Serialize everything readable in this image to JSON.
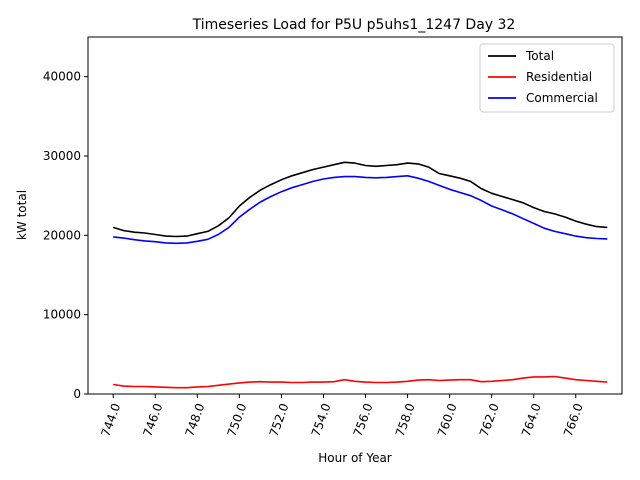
{
  "chart_data": {
    "type": "line",
    "title": "Timeseries Load for P5U p5uhs1_1247  Day 32",
    "xlabel": "Hour of Year",
    "ylabel": "kW total",
    "xlim": [
      742.8,
      768.2
    ],
    "ylim": [
      0,
      45000
    ],
    "xticks": [
      744,
      746,
      748,
      750,
      752,
      754,
      756,
      758,
      760,
      762,
      764,
      766
    ],
    "xtick_labels": [
      "744.0",
      "746.0",
      "748.0",
      "750.0",
      "752.0",
      "754.0",
      "756.0",
      "758.0",
      "760.0",
      "762.0",
      "764.0",
      "766.0"
    ],
    "yticks": [
      0,
      10000,
      20000,
      30000,
      40000
    ],
    "ytick_labels": [
      "0",
      "10000",
      "20000",
      "30000",
      "40000"
    ],
    "legend_position": "upper-right",
    "x": [
      744,
      744.5,
      745,
      745.5,
      746,
      746.5,
      747,
      747.5,
      748,
      748.5,
      749,
      749.5,
      750,
      750.5,
      751,
      751.5,
      752,
      752.5,
      753,
      753.5,
      754,
      754.5,
      755,
      755.5,
      756,
      756.5,
      757,
      757.5,
      758,
      758.5,
      759,
      759.5,
      760,
      760.5,
      761,
      761.5,
      762,
      762.5,
      763,
      763.5,
      764,
      764.5,
      765,
      765.5,
      766,
      766.5,
      767,
      767.5
    ],
    "series": [
      {
        "name": "Total",
        "color": "#000000",
        "values": [
          21000,
          20600,
          20400,
          20300,
          20100,
          19900,
          19850,
          19900,
          20200,
          20500,
          21200,
          22200,
          23700,
          24800,
          25700,
          26400,
          27000,
          27500,
          27900,
          28300,
          28600,
          28900,
          29200,
          29100,
          28800,
          28700,
          28800,
          28900,
          29100,
          29000,
          28600,
          27800,
          27500,
          27200,
          26800,
          25900,
          25300,
          24900,
          24500,
          24100,
          23500,
          23000,
          22700,
          22300,
          21800,
          21400,
          21100,
          21000
        ]
      },
      {
        "name": "Residential",
        "color": "#ff0000",
        "values": [
          1200,
          1000,
          950,
          950,
          900,
          850,
          800,
          800,
          900,
          950,
          1100,
          1250,
          1400,
          1500,
          1550,
          1500,
          1500,
          1450,
          1450,
          1500,
          1500,
          1550,
          1800,
          1600,
          1500,
          1450,
          1450,
          1500,
          1600,
          1750,
          1800,
          1700,
          1750,
          1800,
          1800,
          1550,
          1600,
          1700,
          1800,
          2000,
          2150,
          2150,
          2200,
          2000,
          1800,
          1700,
          1600,
          1500
        ]
      },
      {
        "name": "Commercial",
        "color": "#0000ff",
        "values": [
          19800,
          19650,
          19450,
          19300,
          19200,
          19050,
          19000,
          19050,
          19250,
          19500,
          20100,
          21000,
          22300,
          23300,
          24200,
          24900,
          25500,
          26000,
          26400,
          26800,
          27100,
          27300,
          27400,
          27400,
          27300,
          27250,
          27300,
          27400,
          27500,
          27200,
          26800,
          26300,
          25800,
          25400,
          25000,
          24400,
          23700,
          23200,
          22700,
          22100,
          21500,
          20900,
          20500,
          20200,
          19900,
          19700,
          19600,
          19550
        ]
      }
    ]
  }
}
